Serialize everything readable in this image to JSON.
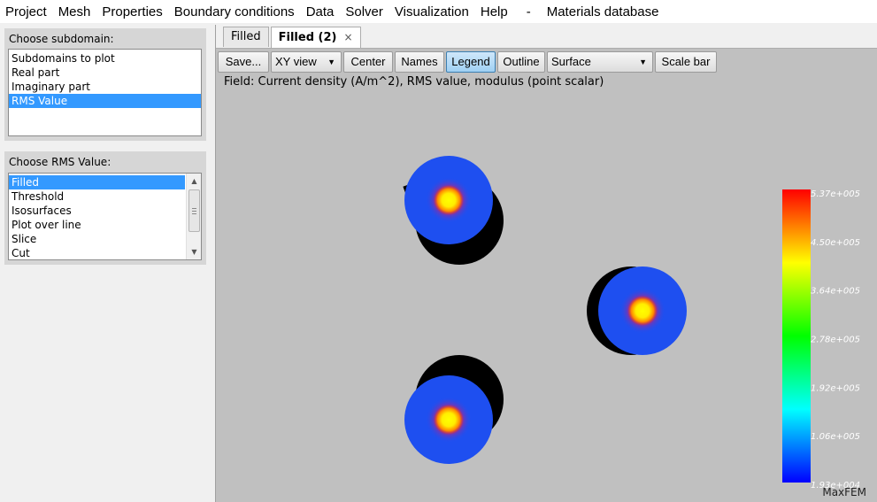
{
  "menu": [
    "Project",
    "Mesh",
    "Properties",
    "Boundary conditions",
    "Data",
    "Solver",
    "Visualization",
    "Help",
    "-",
    "Materials database"
  ],
  "subdomain_panel": {
    "title": "Choose subdomain:",
    "items": [
      "Subdomains to plot",
      "Real part",
      "Imaginary part",
      "RMS Value"
    ],
    "selected": "RMS Value"
  },
  "rms_panel": {
    "title": "Choose RMS Value:",
    "items": [
      "Filled",
      "Threshold",
      "Isosurfaces",
      "Plot over line",
      "Slice",
      "Cut"
    ],
    "selected": "Filled"
  },
  "tabs": [
    {
      "label": "Filled",
      "active": false
    },
    {
      "label": "Filled (2)",
      "active": true,
      "close": "×"
    }
  ],
  "toolbar": {
    "save": "Save...",
    "view": "XY view",
    "center": "Center",
    "names": "Names",
    "legend": "Legend",
    "outline": "Outline",
    "representation": "Surface",
    "scale_bar": "Scale bar"
  },
  "field_label": "Field: Current density (A/m^2), RMS value, modulus (point scalar)",
  "legend": {
    "labels": [
      "5.37e+005",
      "4.50e+005",
      "3.64e+005",
      "2.78e+005",
      "1.92e+005",
      "1.06e+005",
      "1.93e+004"
    ],
    "colors": [
      "#ff0000",
      "#ffff00",
      "#00ff00",
      "#00ffff",
      "#0000ff"
    ]
  },
  "brand": "MaxFEM",
  "colors": {
    "selection": "#3399ff",
    "viewport_bg": "#c0c0c0",
    "disk": "#1e4ff0",
    "shadow": "#000000"
  }
}
